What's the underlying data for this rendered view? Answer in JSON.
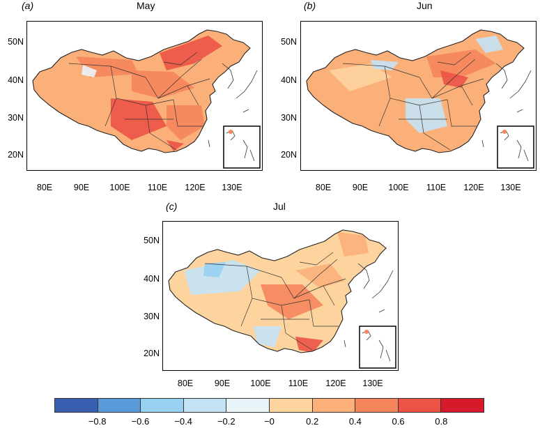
{
  "panels": [
    {
      "id": "a",
      "letter": "(a)",
      "title": "May",
      "tone": "warm-strong"
    },
    {
      "id": "b",
      "letter": "(b)",
      "title": "Jun",
      "tone": "warm-mixed"
    },
    {
      "id": "c",
      "letter": "(c)",
      "title": "Jul",
      "tone": "mixed-cool-west"
    }
  ],
  "axes": {
    "lat_labels": [
      "50N",
      "40N",
      "30N",
      "20N"
    ],
    "lon_labels": [
      "80E",
      "90E",
      "100E",
      "110E",
      "120E",
      "130E"
    ]
  },
  "colorbar": {
    "colors": [
      "#3b5fb0",
      "#5b9ad8",
      "#98d0f0",
      "#c3e3f5",
      "#e9f4f8",
      "#fdd49e",
      "#fbb07a",
      "#f6855c",
      "#ec5346",
      "#d7192c"
    ],
    "labels": [
      "−0.8",
      "−0.6",
      "−0.4",
      "−0.2",
      "−0",
      "0.2",
      "0.4",
      "0.6",
      "0.8"
    ]
  }
}
